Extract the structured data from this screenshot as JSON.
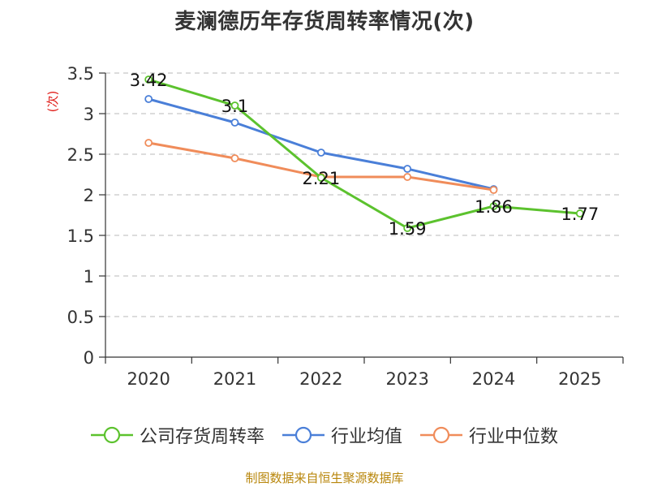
{
  "chart_data": {
    "type": "line",
    "title": "麦澜德历年存货周转率情况(次)",
    "ylabel": "(次)",
    "xlabel": "",
    "categories": [
      "2020",
      "2021",
      "2022",
      "2023",
      "2024",
      "2025"
    ],
    "ylim": [
      0,
      3.5
    ],
    "yticks": [
      0,
      0.5,
      1,
      1.5,
      2,
      2.5,
      3,
      3.5
    ],
    "ytick_labels": [
      "0",
      "0.5",
      "1",
      "1.5",
      "2",
      "2.5",
      "3",
      "3.5"
    ],
    "grid": true,
    "legend_position": "bottom",
    "series": [
      {
        "name": "公司存货周转率",
        "color": "#5cc22e",
        "values": [
          3.42,
          3.1,
          2.21,
          1.59,
          1.86,
          1.77
        ],
        "labels": [
          "3.42",
          "3.1",
          "2.21",
          "1.59",
          "1.86",
          "1.77"
        ]
      },
      {
        "name": "行业均值",
        "color": "#4a7fd8",
        "values": [
          3.18,
          2.89,
          2.52,
          2.32,
          2.07,
          null
        ]
      },
      {
        "name": "行业中位数",
        "color": "#f08c5a",
        "values": [
          2.64,
          2.45,
          2.22,
          2.22,
          2.06,
          null
        ]
      }
    ],
    "source_note": "制图数据来自恒生聚源数据库"
  }
}
